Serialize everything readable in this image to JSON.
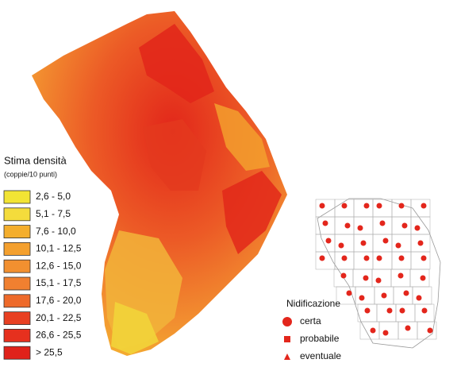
{
  "legend": {
    "title": "Stima densità",
    "subtitle": "(coppie/10 punti)",
    "items": [
      {
        "label": "2,6 - 5,0",
        "color": "#f2e434"
      },
      {
        "label": "5,1 - 7,5",
        "color": "#f4dc3c"
      },
      {
        "label": "7,6 - 10,0",
        "color": "#f4ae2c"
      },
      {
        "label": "10,1 - 12,5",
        "color": "#f4a02e"
      },
      {
        "label": "12,6 - 15,0",
        "color": "#f29030"
      },
      {
        "label": "15,1 - 17,5",
        "color": "#f08030"
      },
      {
        "label": "17,6 - 20,0",
        "color": "#ee6a2a"
      },
      {
        "label": "20,1 - 22,5",
        "color": "#e84022"
      },
      {
        "label": "26,6 - 25,5",
        "color": "#e6301e"
      },
      {
        "label": "> 25,5",
        "color": "#e0221a"
      }
    ]
  },
  "nidificazione": {
    "title": "Nidificazione",
    "color": "#e3261c",
    "items": [
      {
        "label": "certa",
        "symbol": "circle"
      },
      {
        "label": "probabile",
        "symbol": "square"
      },
      {
        "label": "eventuale",
        "symbol": "triangle"
      }
    ]
  }
}
